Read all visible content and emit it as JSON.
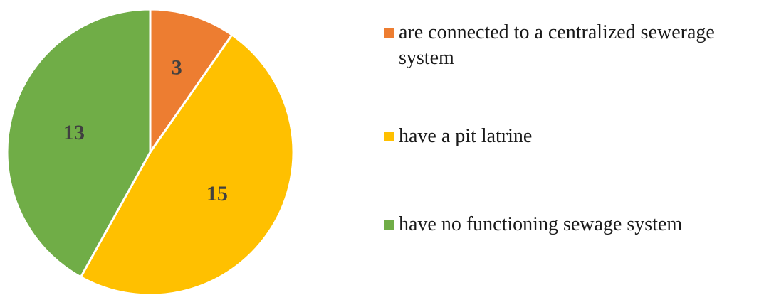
{
  "chart_data": {
    "type": "pie",
    "title": "",
    "categories": [
      "are connected to a centralized sewerage system",
      "have a pit latrine",
      "have no functioning sewage system"
    ],
    "values": [
      3,
      15,
      13
    ],
    "colors": [
      "#ED7D31",
      "#FFC000",
      "#70AD47"
    ],
    "start_angle_deg": 0,
    "direction": "clockwise",
    "legend_position": "right",
    "data_labels": [
      "3",
      "15",
      "13"
    ]
  }
}
